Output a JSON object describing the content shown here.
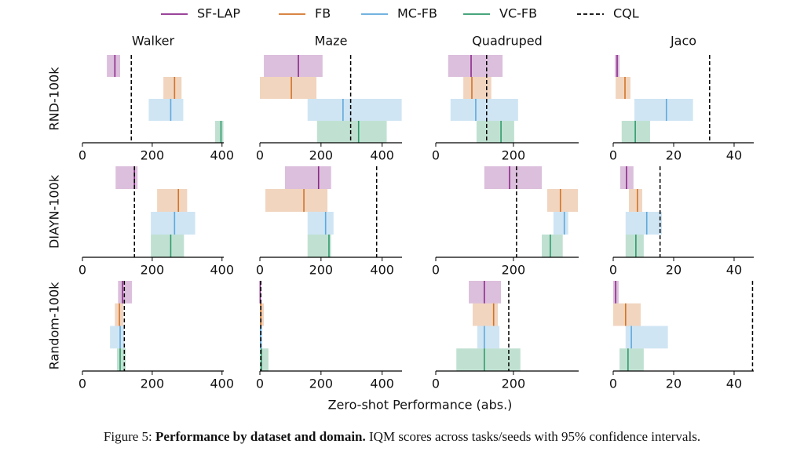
{
  "legend": [
    {
      "name": "SF-LAP",
      "color": "#8b2a8b",
      "style": "solid"
    },
    {
      "name": "FB",
      "color": "#d2742a",
      "style": "solid"
    },
    {
      "name": "MC-FB",
      "color": "#5fa8dc",
      "style": "solid"
    },
    {
      "name": "VC-FB",
      "color": "#2f9a6a",
      "style": "solid"
    },
    {
      "name": "CQL",
      "color": "#000000",
      "style": "dashed"
    }
  ],
  "xlabel": "Zero-shot Performance (abs.)",
  "caption": {
    "label": "Figure 5:",
    "bold": "Performance by dataset and domain.",
    "text": "IQM scores across tasks/seeds with 95% confidence intervals."
  },
  "chart_data": [
    {
      "type": "interval",
      "title": "Walker",
      "ylabel": "RND-100k",
      "xlim": [
        0,
        405
      ],
      "xticks": [
        0,
        200,
        400
      ],
      "values": [
        93,
        264,
        253,
        397
      ],
      "lows": [
        70,
        232,
        190,
        380
      ],
      "highs": [
        108,
        284,
        289,
        404
      ],
      "cql": 140
    },
    {
      "type": "interval",
      "title": "Maze",
      "xlim": [
        0,
        465
      ],
      "xticks": [
        0,
        200,
        400
      ],
      "values": [
        126,
        103,
        272,
        323
      ],
      "lows": [
        13,
        0,
        156,
        187
      ],
      "highs": [
        205,
        185,
        464,
        415
      ],
      "cql": 297
    },
    {
      "type": "interval",
      "title": "Quadruped",
      "xlim": [
        0,
        368
      ],
      "xticks": [
        0,
        200
      ],
      "values": [
        91,
        93,
        103,
        168
      ],
      "lows": [
        32,
        71,
        38,
        105
      ],
      "highs": [
        172,
        143,
        212,
        202
      ],
      "cql": 131
    },
    {
      "type": "interval",
      "title": "Jaco",
      "xlim": [
        0,
        46.5
      ],
      "xticks": [
        0,
        20,
        40
      ],
      "values": [
        1.3,
        3.9,
        17.6,
        7.3
      ],
      "lows": [
        0.5,
        0.8,
        7.0,
        2.8
      ],
      "highs": [
        2.1,
        5.7,
        26.4,
        12.2
      ],
      "cql": 31.9
    },
    {
      "type": "interval",
      "ylabel": "DIAYN-100k",
      "xlim": [
        0,
        405
      ],
      "xticks": [
        0,
        200,
        400
      ],
      "values": [
        149,
        275,
        264,
        253
      ],
      "lows": [
        95,
        214,
        196,
        196
      ],
      "highs": [
        158,
        300,
        323,
        291
      ],
      "cql": 149
    },
    {
      "type": "interval",
      "xlim": [
        0,
        465
      ],
      "xticks": [
        0,
        200,
        400
      ],
      "values": [
        192,
        144,
        215,
        226
      ],
      "lows": [
        82,
        18,
        156,
        156
      ],
      "highs": [
        233,
        221,
        241,
        233
      ],
      "cql": 382
    },
    {
      "type": "interval",
      "xlim": [
        0,
        368
      ],
      "xticks": [
        0,
        200
      ],
      "values": [
        190,
        321,
        331,
        295
      ],
      "lows": [
        125,
        287,
        303,
        273
      ],
      "highs": [
        273,
        366,
        341,
        327
      ],
      "cql": 208
    },
    {
      "type": "interval",
      "xlim": [
        0,
        46.5
      ],
      "xticks": [
        0,
        20,
        40
      ],
      "values": [
        4.4,
        8.0,
        11.1,
        7.5
      ],
      "lows": [
        2.3,
        5.2,
        4.1,
        4.1
      ],
      "highs": [
        6.7,
        9.6,
        16.1,
        10.1
      ],
      "cql": 15.5
    },
    {
      "type": "interval",
      "ylabel": "Random-100k",
      "xlim": [
        0,
        405
      ],
      "xticks": [
        0,
        200,
        400
      ],
      "values": [
        115,
        106,
        108,
        108
      ],
      "lows": [
        102,
        93,
        79,
        99
      ],
      "highs": [
        142,
        117,
        120,
        124
      ],
      "cql": 120
    },
    {
      "type": "interval",
      "xlim": [
        0,
        465
      ],
      "xticks": [
        0,
        200,
        400
      ],
      "values": [
        1,
        3,
        2,
        5
      ],
      "lows": [
        0,
        0,
        0,
        0
      ],
      "highs": [
        3,
        13,
        8,
        28
      ],
      "cql": 3
    },
    {
      "type": "interval",
      "xlim": [
        0,
        368
      ],
      "xticks": [
        0,
        200
      ],
      "values": [
        125,
        149,
        125,
        125
      ],
      "lows": [
        85,
        95,
        107,
        53
      ],
      "highs": [
        168,
        160,
        164,
        218
      ],
      "cql": 188
    },
    {
      "type": "interval",
      "xlim": [
        0,
        46.5
      ],
      "xticks": [
        0,
        20,
        40
      ],
      "values": [
        0.8,
        4.1,
        6.0,
        4.9
      ],
      "lows": [
        0,
        0,
        4.1,
        2.1
      ],
      "highs": [
        1.8,
        9.1,
        18.1,
        10.1
      ],
      "cql": 46.1
    }
  ]
}
